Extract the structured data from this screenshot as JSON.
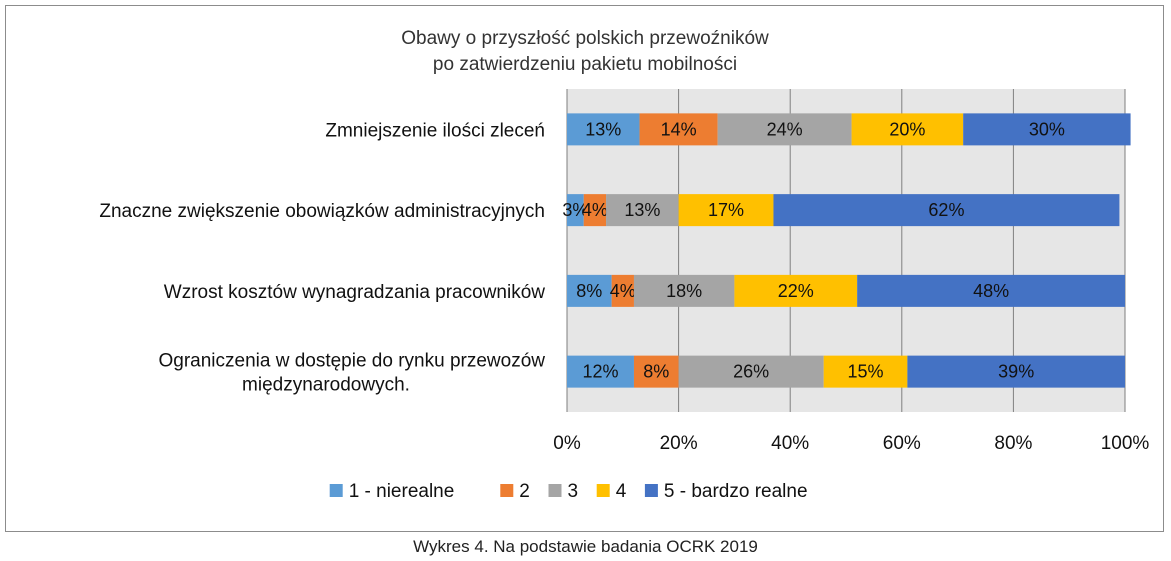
{
  "caption": "Wykres 4. Na podstawie badania OCRK 2019",
  "chart_data": {
    "type": "bar",
    "orientation": "horizontal",
    "stacked": "percent",
    "title_lines": [
      "Obawy o przyszłość polskich przewoźników",
      "po zatwierdzeniu pakietu mobilności"
    ],
    "categories": [
      [
        "Zmniejszenie ilości zleceń"
      ],
      [
        "Znaczne zwiększenie obowiązków administracyjnych"
      ],
      [
        "Wzrost kosztów wynagradzania pracowników"
      ],
      [
        "Ograniczenia w dostępie do rynku przewozów",
        "międzynarodowych."
      ]
    ],
    "series": [
      {
        "name": "1 - nierealne",
        "color": "#5b9bd5",
        "values": [
          13,
          3,
          8,
          12
        ],
        "labels": [
          "13%",
          "3%",
          "8%",
          "12%"
        ]
      },
      {
        "name": "2",
        "color": "#ed7d31",
        "values": [
          14,
          4,
          4,
          8
        ],
        "labels": [
          "14%",
          "4%",
          "4%",
          "8%"
        ]
      },
      {
        "name": "3",
        "color": "#a5a5a5",
        "values": [
          24,
          13,
          18,
          26
        ],
        "labels": [
          "24%",
          "13%",
          "18%",
          "26%"
        ]
      },
      {
        "name": "4",
        "color": "#ffc000",
        "values": [
          20,
          17,
          22,
          15
        ],
        "labels": [
          "20%",
          "17%",
          "22%",
          "15%"
        ]
      },
      {
        "name": "5 - bardzo realne",
        "color": "#4472c4",
        "values": [
          30,
          62,
          48,
          39
        ],
        "labels": [
          "30%",
          "62%",
          "48%",
          "39%"
        ]
      }
    ],
    "xlim": [
      0,
      100
    ],
    "xticks": [
      "0%",
      "20%",
      "40%",
      "60%",
      "80%",
      "100%"
    ],
    "grid": true,
    "legend_position": "bottom"
  }
}
